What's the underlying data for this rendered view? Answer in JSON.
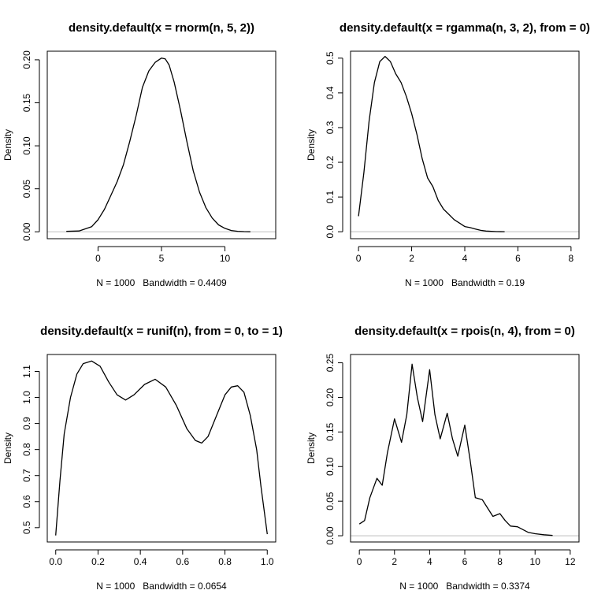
{
  "chart_data": [
    {
      "type": "line",
      "title": "density.default(x = rnorm(n, 5, 2))",
      "xlabel": "N = 1000   Bandwidth = 0.4409",
      "ylabel": "Density",
      "xlim": [
        -4,
        14
      ],
      "ylim": [
        -0.008,
        0.21
      ],
      "xticks": [
        0,
        5,
        10
      ],
      "yticks": [
        0.0,
        0.05,
        0.1,
        0.15,
        0.2
      ],
      "ytick_labels": [
        "0.00",
        "0.05",
        "0.10",
        "0.15",
        "0.20"
      ],
      "zero_line": true,
      "series": [
        {
          "x": [
            -2.5,
            -1.5,
            -0.5,
            0,
            0.5,
            1,
            1.5,
            2,
            2.5,
            3,
            3.5,
            4,
            4.5,
            5,
            5.3,
            5.6,
            6,
            6.5,
            7,
            7.5,
            8,
            8.5,
            9,
            9.5,
            10,
            10.5,
            11,
            11.5,
            12
          ],
          "y": [
            0.0005,
            0.001,
            0.006,
            0.014,
            0.026,
            0.042,
            0.058,
            0.078,
            0.105,
            0.135,
            0.168,
            0.187,
            0.197,
            0.202,
            0.201,
            0.194,
            0.174,
            0.141,
            0.105,
            0.071,
            0.046,
            0.028,
            0.016,
            0.008,
            0.004,
            0.0015,
            0.0006,
            0.0002,
            0.0001
          ]
        }
      ]
    },
    {
      "type": "line",
      "title": "density.default(x = rgamma(n, 3, 2), from = 0)",
      "xlabel": "N = 1000   Bandwidth = 0.19",
      "ylabel": "Density",
      "xlim": [
        -0.3,
        8.3
      ],
      "ylim": [
        -0.02,
        0.52
      ],
      "xticks": [
        0,
        2,
        4,
        6,
        8
      ],
      "yticks": [
        0.0,
        0.1,
        0.2,
        0.3,
        0.4,
        0.5
      ],
      "ytick_labels": [
        "0.0",
        "0.1",
        "0.2",
        "0.3",
        "0.4",
        "0.5"
      ],
      "zero_line": true,
      "series": [
        {
          "x": [
            0,
            0.2,
            0.4,
            0.6,
            0.8,
            1.0,
            1.2,
            1.4,
            1.6,
            1.8,
            2.0,
            2.2,
            2.4,
            2.6,
            2.8,
            3.0,
            3.2,
            3.4,
            3.6,
            3.8,
            4.0,
            4.2,
            4.4,
            4.6,
            4.8,
            5.0,
            5.2,
            5.5
          ],
          "y": [
            0.045,
            0.17,
            0.32,
            0.43,
            0.49,
            0.505,
            0.49,
            0.455,
            0.43,
            0.39,
            0.34,
            0.28,
            0.21,
            0.155,
            0.13,
            0.09,
            0.065,
            0.05,
            0.035,
            0.025,
            0.015,
            0.012,
            0.008,
            0.004,
            0.002,
            0.001,
            0.0005,
            0.0002
          ]
        }
      ]
    },
    {
      "type": "line",
      "title": "density.default(x = runif(n), from = 0, to = 1)",
      "xlabel": "N = 1000   Bandwidth = 0.0654",
      "ylabel": "Density",
      "xlim": [
        -0.04,
        1.04
      ],
      "ylim": [
        0.445,
        1.165
      ],
      "xticks": [
        0.0,
        0.2,
        0.4,
        0.6,
        0.8,
        1.0
      ],
      "xtick_labels": [
        "0.0",
        "0.2",
        "0.4",
        "0.6",
        "0.8",
        "1.0"
      ],
      "yticks": [
        0.5,
        0.6,
        0.7,
        0.8,
        0.9,
        1.0,
        1.1
      ],
      "ytick_labels": [
        "0.5",
        "0.6",
        "0.7",
        "0.8",
        "0.9",
        "1.0",
        "1.1"
      ],
      "zero_line": false,
      "series": [
        {
          "x": [
            0,
            0.02,
            0.04,
            0.07,
            0.1,
            0.13,
            0.17,
            0.21,
            0.25,
            0.29,
            0.33,
            0.37,
            0.42,
            0.47,
            0.52,
            0.57,
            0.62,
            0.66,
            0.69,
            0.72,
            0.76,
            0.8,
            0.83,
            0.86,
            0.89,
            0.92,
            0.95,
            0.97,
            1.0
          ],
          "y": [
            0.47,
            0.68,
            0.86,
            1.0,
            1.09,
            1.13,
            1.14,
            1.12,
            1.06,
            1.01,
            0.99,
            1.01,
            1.05,
            1.07,
            1.04,
            0.97,
            0.88,
            0.835,
            0.825,
            0.85,
            0.93,
            1.01,
            1.04,
            1.045,
            1.02,
            0.93,
            0.8,
            0.66,
            0.475
          ]
        }
      ]
    },
    {
      "type": "line",
      "title": "density.default(x = rpois(n, 4), from = 0)",
      "xlabel": "N = 1000   Bandwidth = 0.3374",
      "ylabel": "Density",
      "xlim": [
        -0.5,
        12.5
      ],
      "ylim": [
        -0.009,
        0.262
      ],
      "xticks": [
        0,
        2,
        4,
        6,
        8,
        10,
        12
      ],
      "yticks": [
        0.0,
        0.05,
        0.1,
        0.15,
        0.2,
        0.25
      ],
      "ytick_labels": [
        "0.00",
        "0.05",
        "0.10",
        "0.15",
        "0.20",
        "0.25"
      ],
      "zero_line": true,
      "series": [
        {
          "x": [
            0,
            0.3,
            0.6,
            1.0,
            1.3,
            1.6,
            2.0,
            2.4,
            2.7,
            3.0,
            3.3,
            3.6,
            4.0,
            4.3,
            4.6,
            5.0,
            5.3,
            5.6,
            6.0,
            6.3,
            6.6,
            7.0,
            7.3,
            7.6,
            8.0,
            8.3,
            8.6,
            9.0,
            9.3,
            9.6,
            10.0,
            10.5,
            11.0
          ],
          "y": [
            0.017,
            0.022,
            0.055,
            0.083,
            0.073,
            0.12,
            0.169,
            0.135,
            0.175,
            0.248,
            0.2,
            0.165,
            0.24,
            0.175,
            0.14,
            0.177,
            0.14,
            0.115,
            0.16,
            0.11,
            0.055,
            0.052,
            0.04,
            0.028,
            0.032,
            0.022,
            0.014,
            0.013,
            0.009,
            0.005,
            0.003,
            0.0015,
            0.0005
          ]
        }
      ]
    }
  ]
}
